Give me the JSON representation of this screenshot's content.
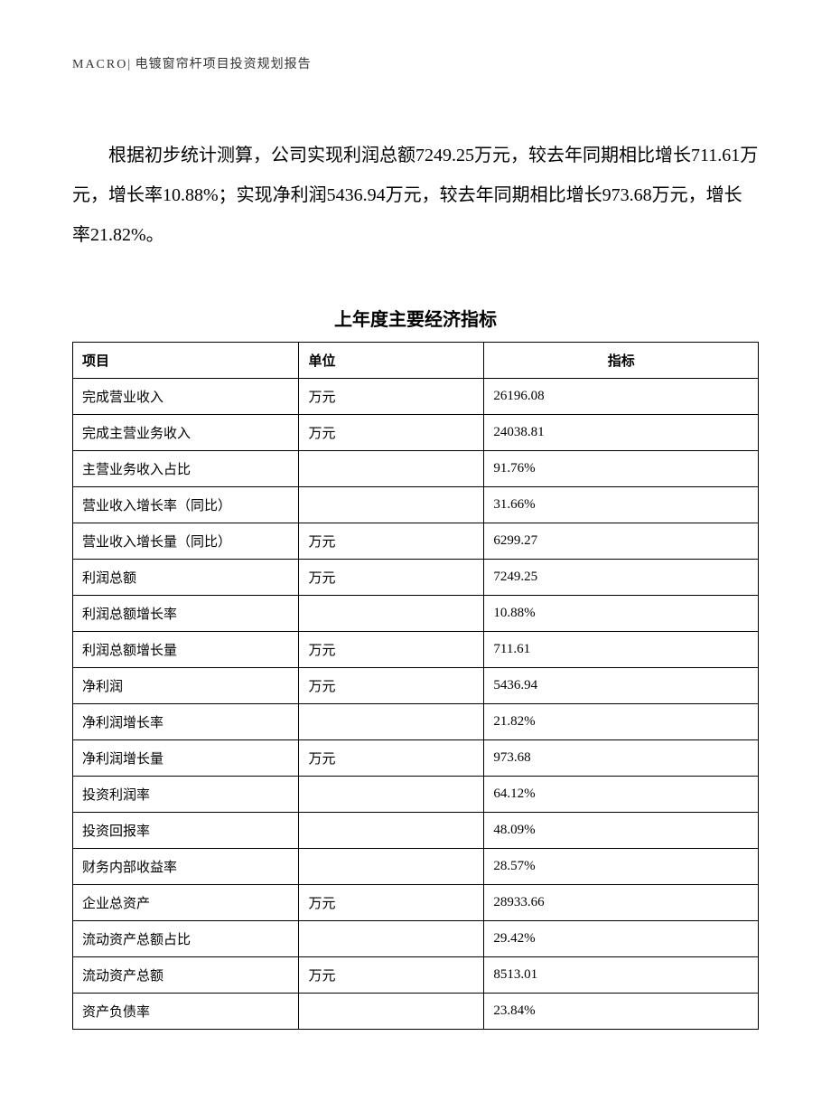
{
  "header": {
    "brand": "MACRO",
    "separator": "|",
    "title": "电镀窗帘杆项目投资规划报告"
  },
  "paragraph": "根据初步统计测算，公司实现利润总额7249.25万元，较去年同期相比增长711.61万元，增长率10.88%；实现净利润5436.94万元，较去年同期相比增长973.68万元，增长率21.82%。",
  "table": {
    "title": "上年度主要经济指标",
    "columns": [
      "项目",
      "单位",
      "指标"
    ],
    "rows": [
      {
        "item": "完成营业收入",
        "unit": "万元",
        "value": "26196.08"
      },
      {
        "item": "完成主营业务收入",
        "unit": "万元",
        "value": "24038.81"
      },
      {
        "item": "主营业务收入占比",
        "unit": "",
        "value": "91.76%"
      },
      {
        "item": "营业收入增长率（同比）",
        "unit": "",
        "value": "31.66%"
      },
      {
        "item": "营业收入增长量（同比）",
        "unit": "万元",
        "value": "6299.27"
      },
      {
        "item": "利润总额",
        "unit": "万元",
        "value": "7249.25"
      },
      {
        "item": "利润总额增长率",
        "unit": "",
        "value": "10.88%"
      },
      {
        "item": "利润总额增长量",
        "unit": "万元",
        "value": "711.61"
      },
      {
        "item": "净利润",
        "unit": "万元",
        "value": "5436.94"
      },
      {
        "item": "净利润增长率",
        "unit": "",
        "value": "21.82%"
      },
      {
        "item": "净利润增长量",
        "unit": "万元",
        "value": "973.68"
      },
      {
        "item": "投资利润率",
        "unit": "",
        "value": "64.12%"
      },
      {
        "item": "投资回报率",
        "unit": "",
        "value": "48.09%"
      },
      {
        "item": "财务内部收益率",
        "unit": "",
        "value": "28.57%"
      },
      {
        "item": "企业总资产",
        "unit": "万元",
        "value": "28933.66"
      },
      {
        "item": "流动资产总额占比",
        "unit": "",
        "value": "29.42%"
      },
      {
        "item": "流动资产总额",
        "unit": "万元",
        "value": "8513.01"
      },
      {
        "item": "资产负债率",
        "unit": "",
        "value": "23.84%"
      }
    ]
  }
}
